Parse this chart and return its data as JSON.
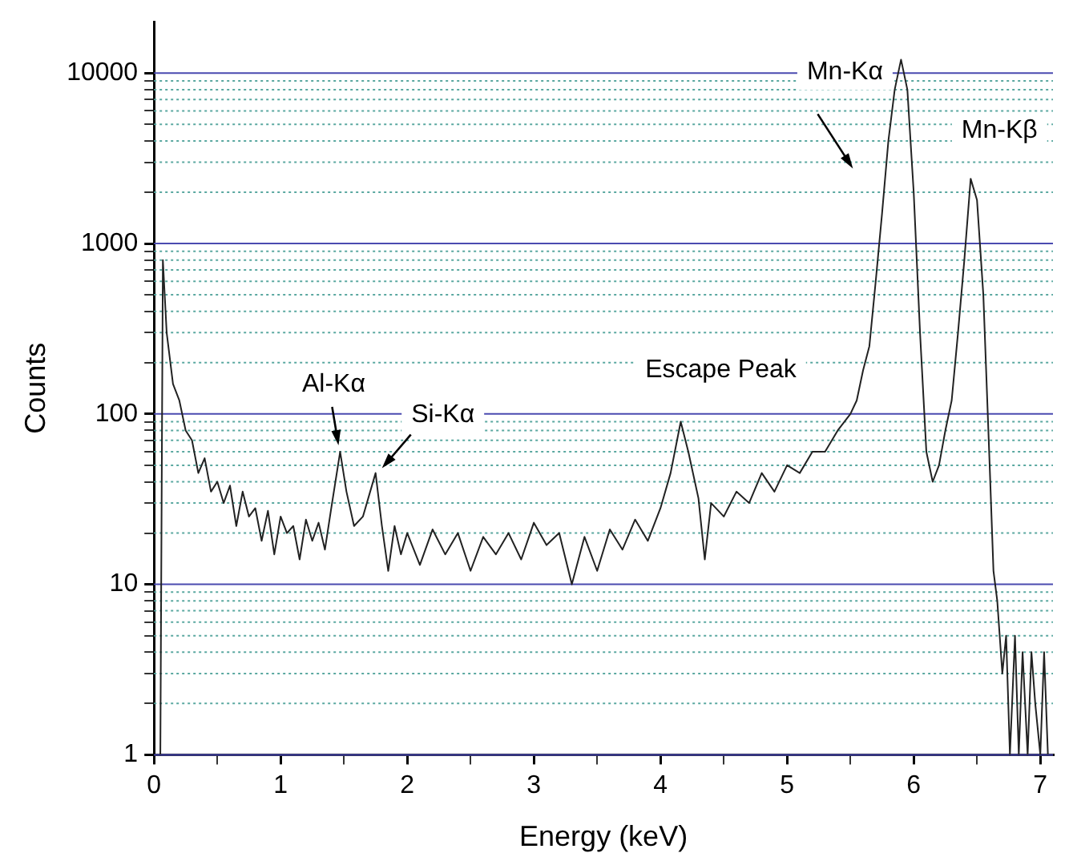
{
  "chart_data": {
    "type": "line",
    "xlabel": "Energy (keV)",
    "ylabel": "Counts",
    "log": "y",
    "grid": "y",
    "legend": false,
    "marker": "none",
    "line_style": "solid",
    "xlim": [
      0,
      7.1
    ],
    "xticks": [
      0,
      {
        "value": 0.5,
        "label": null
      },
      1,
      {
        "value": 1.5,
        "label": null
      },
      2,
      {
        "value": 2.5,
        "label": null
      },
      3,
      {
        "value": 3.5,
        "label": null
      },
      4,
      {
        "value": 4.5,
        "label": null
      },
      5,
      {
        "value": 5.5,
        "label": null
      },
      6,
      {
        "value": 6.5,
        "label": null
      },
      7
    ],
    "ylim": [
      1,
      20000
    ],
    "yticks": [
      1,
      {
        "value": 2,
        "label": null
      },
      {
        "value": 3,
        "label": null
      },
      {
        "value": 4,
        "label": null
      },
      {
        "value": 5,
        "label": null
      },
      {
        "value": 6,
        "label": null
      },
      {
        "value": 7,
        "label": null
      },
      {
        "value": 8,
        "label": null
      },
      {
        "value": 9,
        "label": null
      },
      10,
      {
        "value": 20,
        "label": null
      },
      {
        "value": 30,
        "label": null
      },
      {
        "value": 40,
        "label": null
      },
      {
        "value": 50,
        "label": null
      },
      {
        "value": 60,
        "label": null
      },
      {
        "value": 70,
        "label": null
      },
      {
        "value": 80,
        "label": null
      },
      {
        "value": 90,
        "label": null
      },
      100,
      {
        "value": 200,
        "label": null
      },
      {
        "value": 300,
        "label": null
      },
      {
        "value": 400,
        "label": null
      },
      {
        "value": 500,
        "label": null
      },
      {
        "value": 600,
        "label": null
      },
      {
        "value": 700,
        "label": null
      },
      {
        "value": 800,
        "label": null
      },
      {
        "value": 900,
        "label": null
      },
      1000,
      {
        "value": 2000,
        "label": null
      },
      {
        "value": 3000,
        "label": null
      },
      {
        "value": 4000,
        "label": null
      },
      {
        "value": 5000,
        "label": null
      },
      {
        "value": 6000,
        "label": null
      },
      {
        "value": 7000,
        "label": null
      },
      {
        "value": 8000,
        "label": null
      },
      {
        "value": 9000,
        "label": null
      },
      10000
    ],
    "series": [
      {
        "color": "#222222",
        "x": [
          0.05,
          0.07,
          0.1,
          0.15,
          0.2,
          0.25,
          0.3,
          0.35,
          0.4,
          0.45,
          0.5,
          0.55,
          0.6,
          0.65,
          0.7,
          0.75,
          0.8,
          0.85,
          0.9,
          0.95,
          1.0,
          1.05,
          1.1,
          1.15,
          1.2,
          1.25,
          1.3,
          1.35,
          1.4,
          1.47,
          1.52,
          1.58,
          1.65,
          1.75,
          1.8,
          1.85,
          1.9,
          1.95,
          2.0,
          2.1,
          2.2,
          2.3,
          2.4,
          2.5,
          2.6,
          2.7,
          2.8,
          2.9,
          3.0,
          3.1,
          3.2,
          3.3,
          3.4,
          3.5,
          3.6,
          3.7,
          3.8,
          3.9,
          4.0,
          4.08,
          4.16,
          4.22,
          4.3,
          4.35,
          4.4,
          4.5,
          4.6,
          4.7,
          4.8,
          4.9,
          5.0,
          5.1,
          5.2,
          5.3,
          5.4,
          5.5,
          5.55,
          5.6,
          5.65,
          5.7,
          5.75,
          5.8,
          5.85,
          5.9,
          5.95,
          6.0,
          6.05,
          6.1,
          6.15,
          6.2,
          6.25,
          6.3,
          6.35,
          6.4,
          6.45,
          6.5,
          6.55,
          6.6,
          6.63,
          6.66,
          6.7,
          6.73,
          6.76,
          6.8,
          6.83,
          6.86,
          6.9,
          6.93,
          6.96,
          7.0,
          7.03,
          7.06
        ],
        "values": [
          1,
          800,
          300,
          150,
          120,
          80,
          70,
          45,
          55,
          35,
          40,
          30,
          38,
          22,
          35,
          25,
          28,
          18,
          27,
          15,
          25,
          20,
          22,
          14,
          24,
          18,
          23,
          16,
          28,
          60,
          35,
          22,
          25,
          45,
          22,
          12,
          22,
          15,
          20,
          13,
          21,
          15,
          20,
          12,
          19,
          15,
          20,
          14,
          23,
          17,
          20,
          10,
          19,
          12,
          21,
          16,
          24,
          18,
          28,
          45,
          90,
          60,
          32,
          14,
          30,
          25,
          35,
          30,
          45,
          35,
          50,
          45,
          60,
          60,
          80,
          100,
          120,
          180,
          250,
          600,
          1500,
          4000,
          8000,
          12000,
          8000,
          2000,
          300,
          60,
          40,
          50,
          80,
          120,
          300,
          800,
          2400,
          1800,
          500,
          50,
          12,
          8,
          3,
          5,
          1,
          5,
          1,
          4,
          1,
          4,
          2,
          1,
          4,
          1
        ]
      }
    ],
    "annotations": [
      {
        "text": "Al-Kα",
        "x": 1.47,
        "y": 60
      },
      {
        "text": "Si-Kα",
        "x": 1.75,
        "y": 45
      },
      {
        "text": "Escape Peak",
        "x": 4.16,
        "y": 90
      },
      {
        "text": "Mn-Kα",
        "x": 5.9,
        "y": 12000
      },
      {
        "text": "Mn-Kβ",
        "x": 6.45,
        "y": 2400
      }
    ]
  }
}
